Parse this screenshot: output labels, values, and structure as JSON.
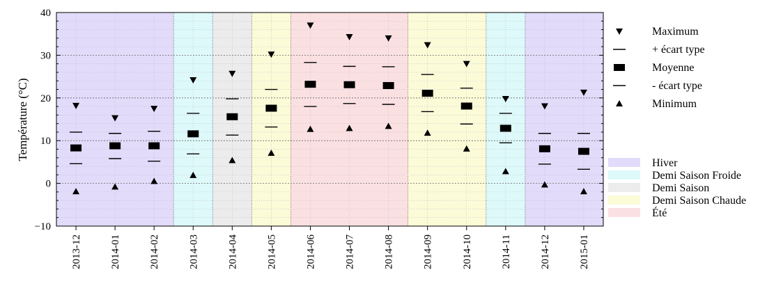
{
  "chart_data": {
    "type": "scatter",
    "title": "",
    "xlabel": "",
    "ylabel": "Température (°C)",
    "ylim": [
      -10,
      40
    ],
    "yticks": [
      "−10",
      "0",
      "10",
      "20",
      "30",
      "40"
    ],
    "ytick_values": [
      -10,
      0,
      10,
      20,
      30,
      40
    ],
    "grid": true,
    "legend_position": "right",
    "categories": [
      "2013-12",
      "2014-01",
      "2014-02",
      "2014-03",
      "2014-04",
      "2014-05",
      "2014-06",
      "2014-07",
      "2014-08",
      "2014-09",
      "2014-10",
      "2014-11",
      "2014-12",
      "2015-01"
    ],
    "series": [
      {
        "name": "Maximum",
        "marker": "triangle-down",
        "values": [
          18.2,
          15.3,
          17.5,
          24.2,
          25.7,
          30.2,
          37.0,
          34.3,
          34.0,
          32.4,
          28.0,
          19.8,
          18.1,
          21.3
        ]
      },
      {
        "name": "+ écart type",
        "marker": "dash",
        "values": [
          12.0,
          11.7,
          12.2,
          16.4,
          19.8,
          22.0,
          28.3,
          27.4,
          27.3,
          25.5,
          22.3,
          16.4,
          11.7,
          11.7
        ]
      },
      {
        "name": "Moyenne",
        "marker": "rect",
        "values": [
          8.3,
          8.8,
          8.8,
          11.6,
          15.6,
          17.6,
          23.2,
          23.1,
          22.9,
          21.1,
          18.1,
          12.9,
          8.1,
          7.5
        ]
      },
      {
        "name": "- écart type",
        "marker": "dash",
        "values": [
          4.6,
          5.8,
          5.2,
          6.9,
          11.3,
          13.2,
          18.0,
          18.7,
          18.5,
          16.8,
          13.9,
          9.5,
          4.5,
          3.3
        ]
      },
      {
        "name": "Minimum",
        "marker": "triangle-up",
        "values": [
          -1.9,
          -0.8,
          0.5,
          1.9,
          5.4,
          7.1,
          12.7,
          12.9,
          13.4,
          11.8,
          8.1,
          2.8,
          -0.3,
          -1.9
        ]
      }
    ],
    "seasons": [
      {
        "name": "Hiver",
        "color": "#e2dbfa",
        "start": 0,
        "end": 2
      },
      {
        "name": "Demi Saison Froide",
        "color": "#def9fa",
        "start": 3,
        "end": 3
      },
      {
        "name": "Demi Saison",
        "color": "#ececec",
        "start": 4,
        "end": 4
      },
      {
        "name": "Demi Saison Chaude",
        "color": "#fbfbd8",
        "start": 5,
        "end": 5
      },
      {
        "name": "Été",
        "color": "#fbe0e2",
        "start": 6,
        "end": 8
      },
      {
        "name": "Demi Saison Chaude",
        "color": "#fbfbd8",
        "start": 9,
        "end": 10
      },
      {
        "name": "Demi Saison Froide",
        "color": "#def9fa",
        "start": 11,
        "end": 11
      },
      {
        "name": "Hiver",
        "color": "#e2dbfa",
        "start": 12,
        "end": 13
      }
    ],
    "season_legend": [
      {
        "name": "Hiver",
        "color": "#e2dbfa"
      },
      {
        "name": "Demi Saison Froide",
        "color": "#def9fa"
      },
      {
        "name": "Demi Saison",
        "color": "#ececec"
      },
      {
        "name": "Demi Saison Chaude",
        "color": "#fbfbd8"
      },
      {
        "name": "Été",
        "color": "#fbe0e2"
      }
    ]
  }
}
